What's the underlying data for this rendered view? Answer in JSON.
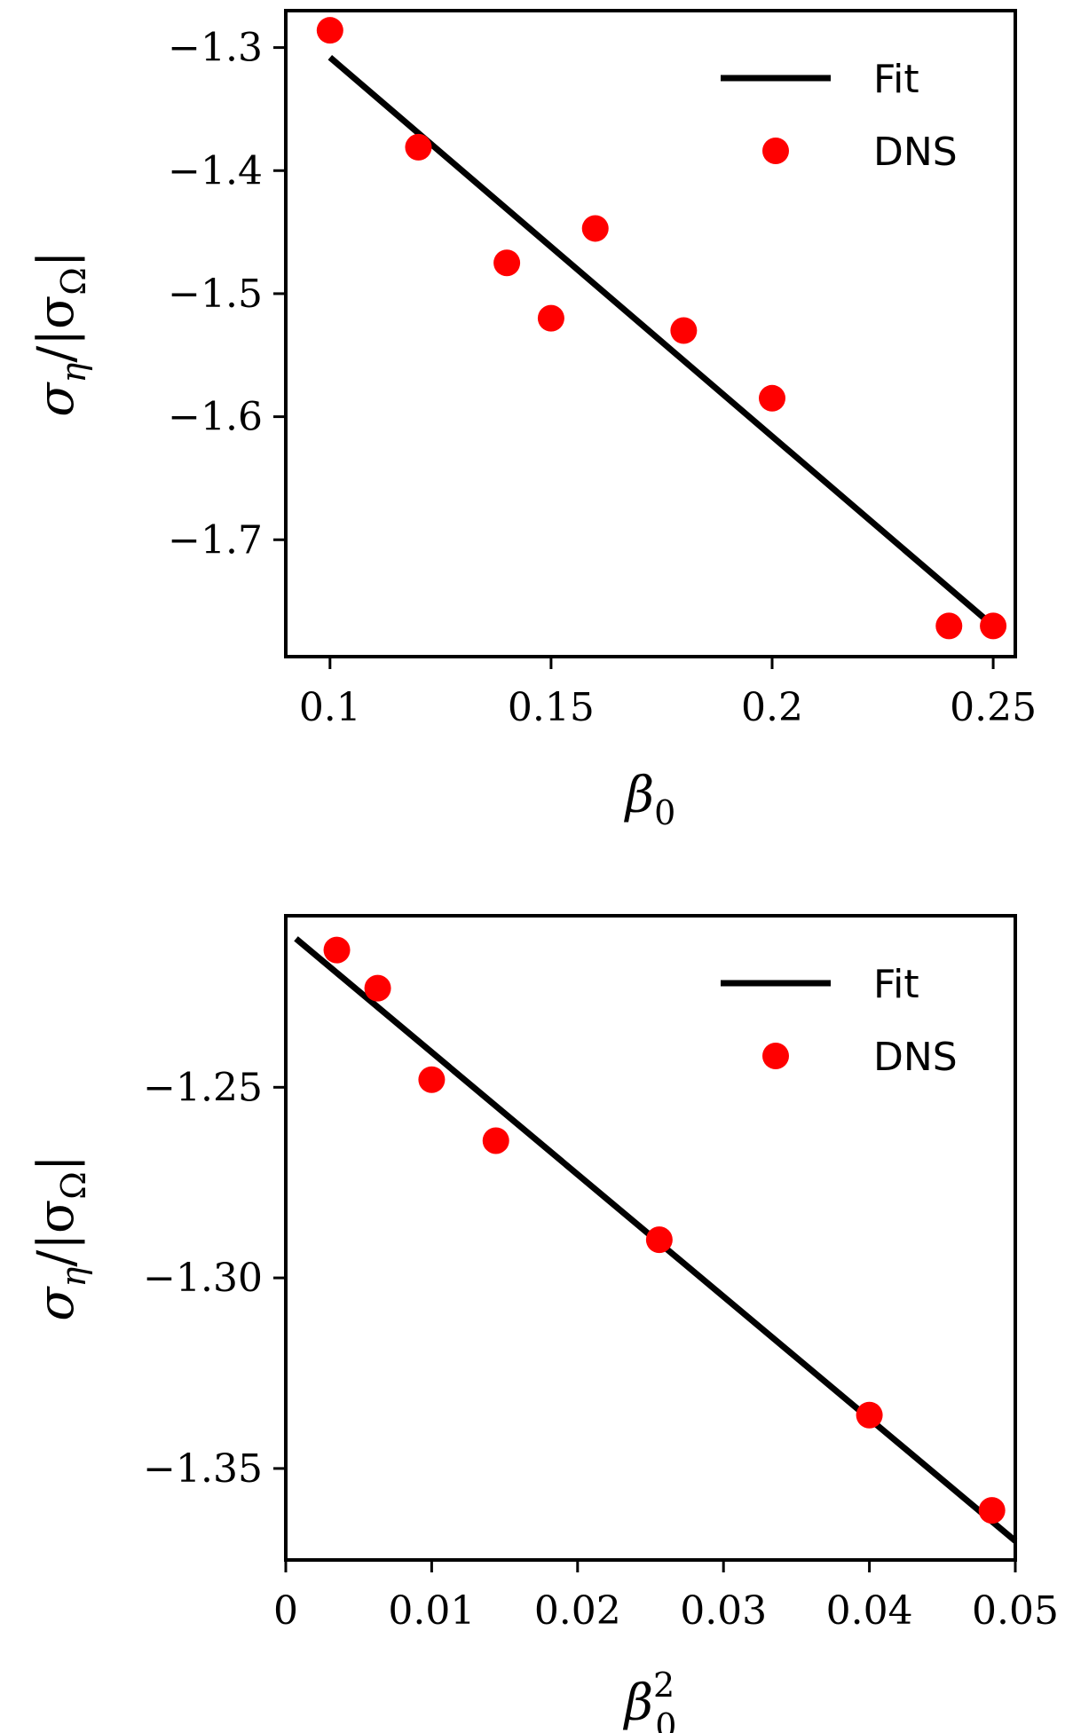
{
  "colors": {
    "fit": "#000000",
    "dns": "#ff0000"
  },
  "chart_data": [
    {
      "type": "scatter",
      "xlabel": "β",
      "xlabel_sub": "0",
      "ylabel": "σ",
      "ylabel_sub": "η",
      "ylabel_rest": "/|σ",
      "ylabel_rest_sub": "Ω",
      "ylabel_end": "|",
      "xlim": [
        0.09,
        0.255
      ],
      "ylim": [
        -1.795,
        -1.27
      ],
      "xticks": [
        0.1,
        0.15,
        0.2,
        0.25
      ],
      "xtick_labels": [
        "0.1",
        "0.15",
        "0.2",
        "0.25"
      ],
      "yticks": [
        -1.3,
        -1.4,
        -1.5,
        -1.6,
        -1.7
      ],
      "ytick_labels": [
        "−1.3",
        "−1.4",
        "−1.5",
        "−1.6",
        "−1.7"
      ],
      "legend_position": "top-right",
      "series": [
        {
          "name": "Fit",
          "kind": "line",
          "x": [
            0.1,
            0.25
          ],
          "y": [
            -1.308,
            -1.77
          ]
        },
        {
          "name": "DNS",
          "kind": "scatter",
          "x": [
            0.1,
            0.12,
            0.14,
            0.15,
            0.16,
            0.18,
            0.2,
            0.24,
            0.25
          ],
          "y": [
            -1.286,
            -1.381,
            -1.475,
            -1.52,
            -1.447,
            -1.53,
            -1.585,
            -1.77,
            -1.77
          ]
        }
      ]
    },
    {
      "type": "scatter",
      "xlabel": "β",
      "xlabel_sub": "0",
      "xlabel_sup": "2",
      "ylabel": "σ",
      "ylabel_sub": "η",
      "ylabel_rest": "/|σ",
      "ylabel_rest_sub": "Ω",
      "ylabel_end": "|",
      "xlim": [
        0,
        0.05
      ],
      "ylim": [
        -1.374,
        -1.205
      ],
      "xticks": [
        0,
        0.01,
        0.02,
        0.03,
        0.04,
        0.05
      ],
      "xtick_labels": [
        "0",
        "0.01",
        "0.02",
        "0.03",
        "0.04",
        "0.05"
      ],
      "yticks": [
        -1.25,
        -1.3,
        -1.35
      ],
      "ytick_labels": [
        "−1.25",
        "−1.30",
        "−1.35"
      ],
      "legend_position": "top-right",
      "series": [
        {
          "name": "Fit",
          "kind": "line",
          "x": [
            0.0007,
            0.05
          ],
          "y": [
            -1.211,
            -1.369
          ]
        },
        {
          "name": "DNS",
          "kind": "scatter",
          "x": [
            0.0035,
            0.0063,
            0.01,
            0.0144,
            0.0256,
            0.04,
            0.0484
          ],
          "y": [
            -1.214,
            -1.224,
            -1.248,
            -1.264,
            -1.29,
            -1.336,
            -1.361
          ]
        }
      ]
    }
  ]
}
